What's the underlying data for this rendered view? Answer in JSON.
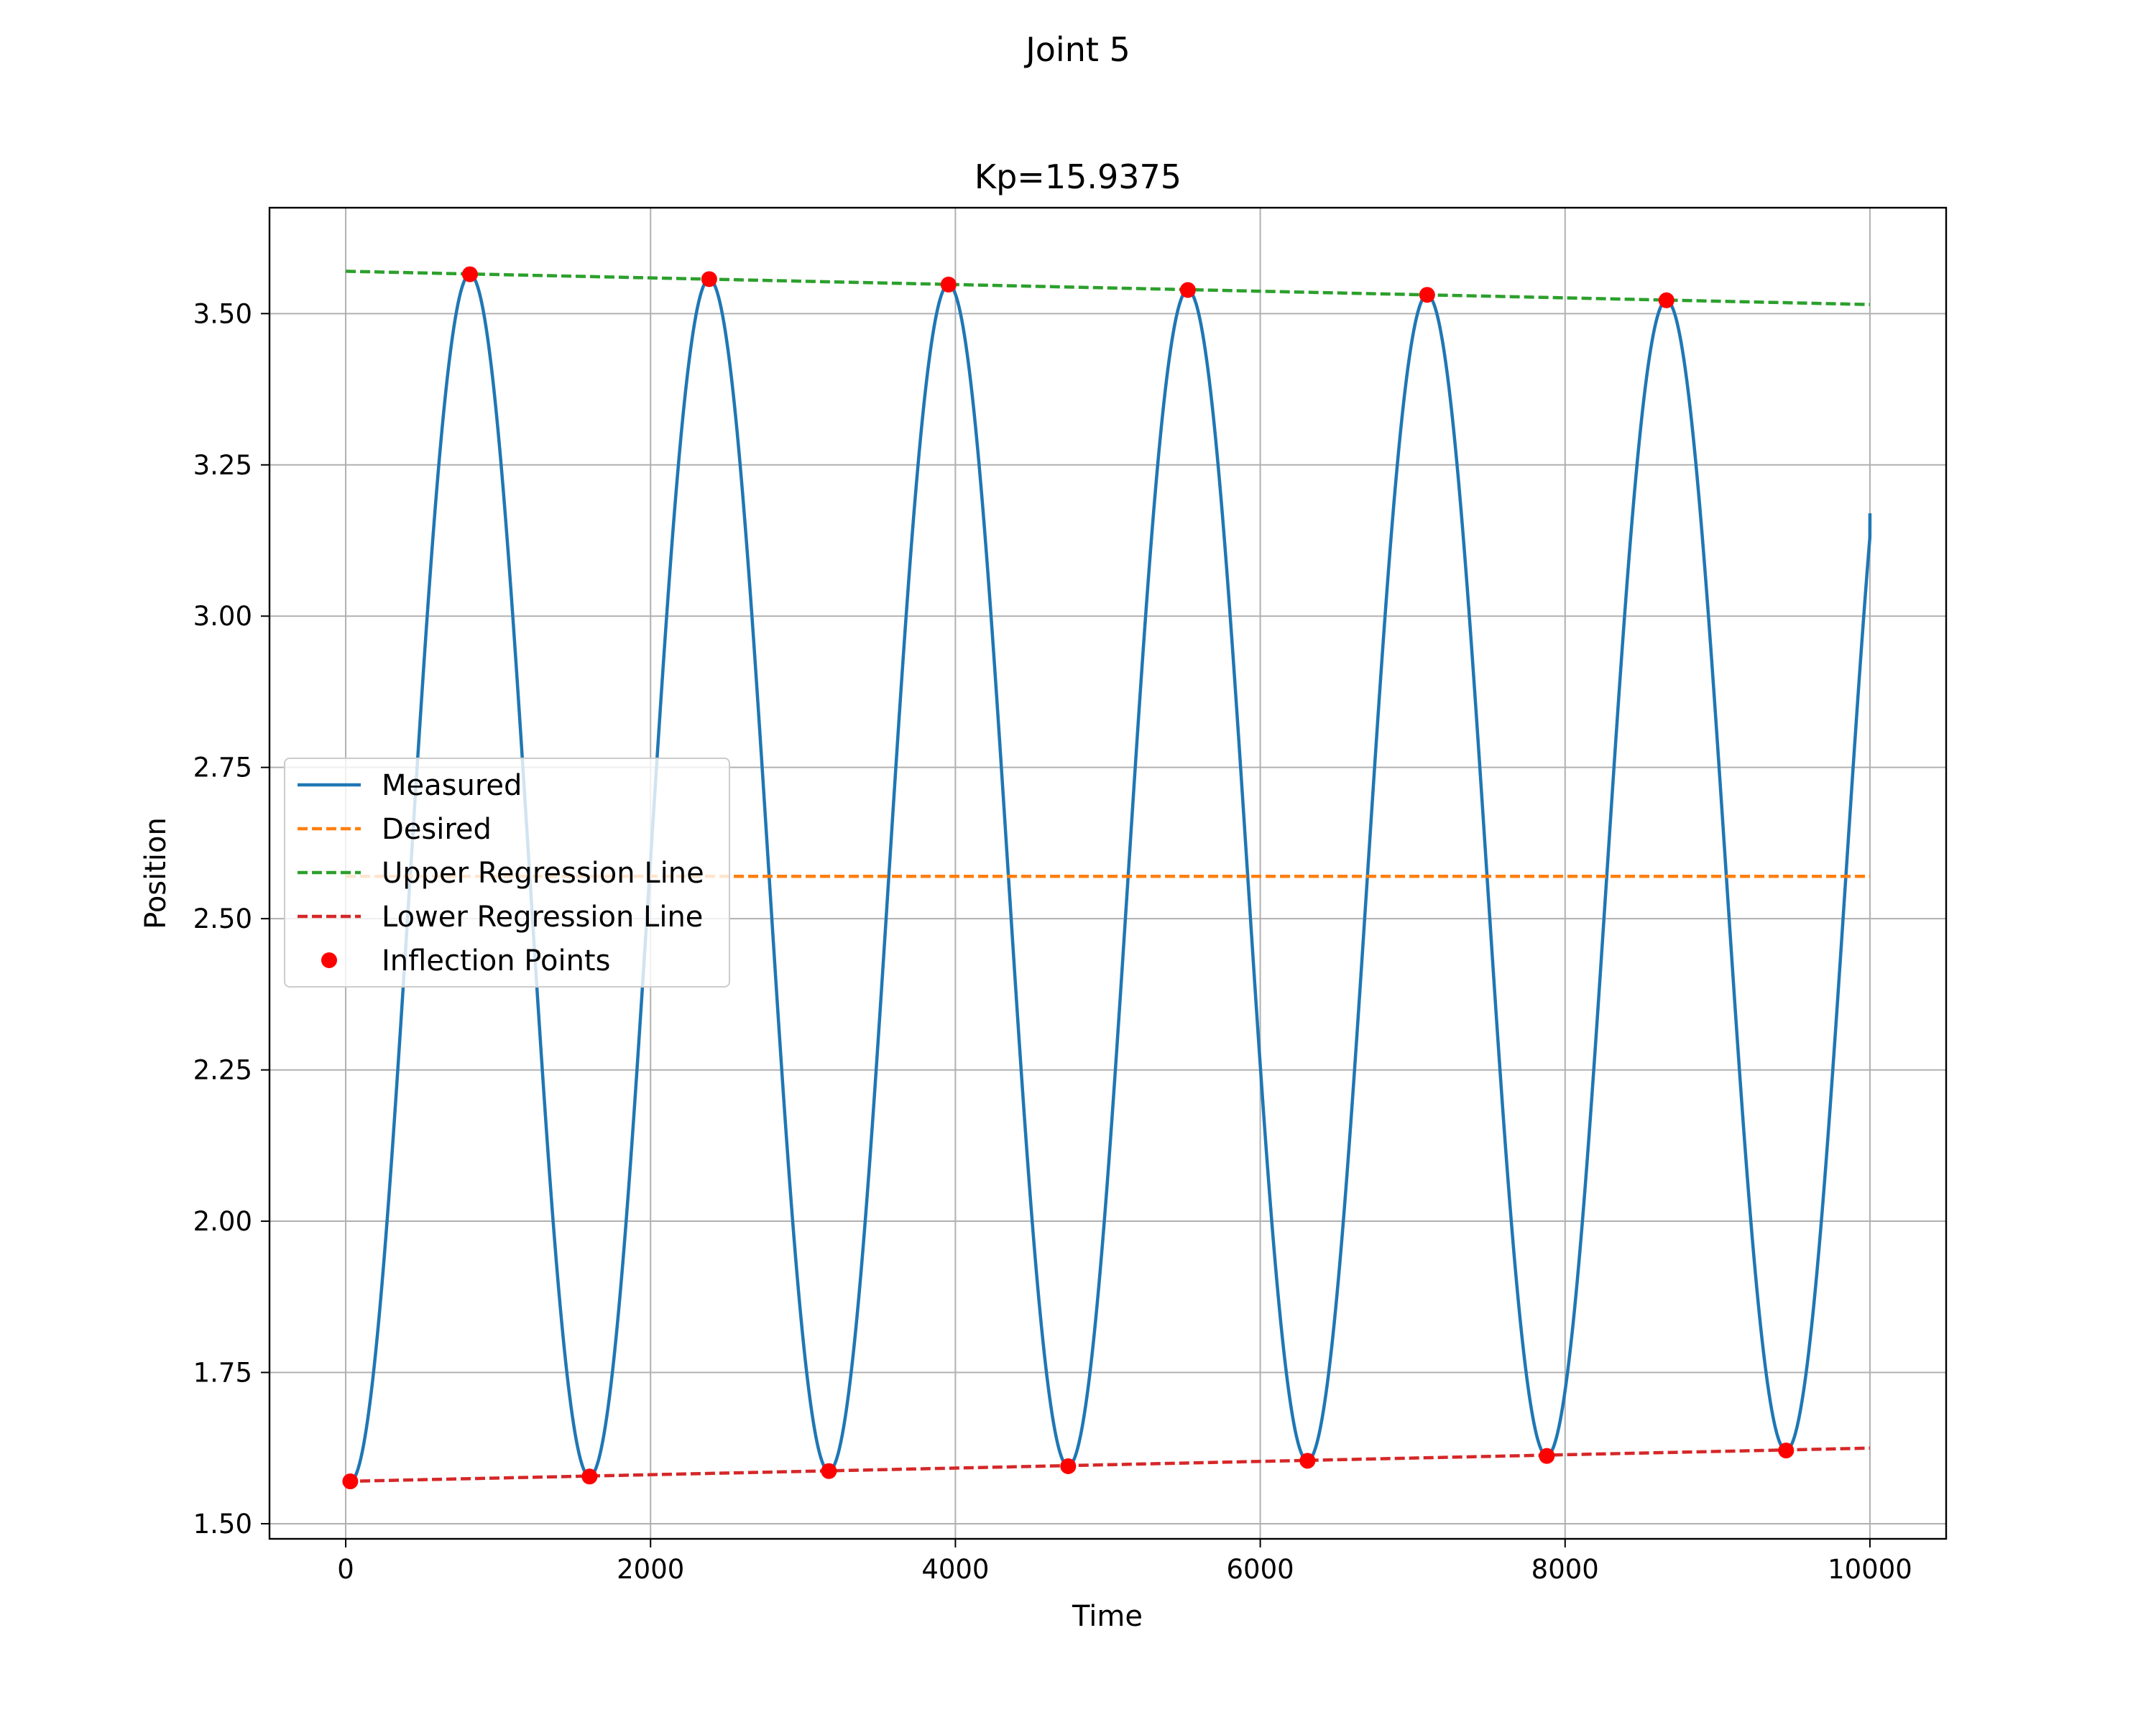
{
  "figure": {
    "suptitle": "Joint 5"
  },
  "chart_data": {
    "type": "line",
    "title": "Kp=15.9375",
    "xlabel": "Time",
    "ylabel": "Position",
    "xlim": [
      -500,
      10500
    ],
    "ylim": [
      1.475,
      3.675
    ],
    "xticks": [
      0,
      2000,
      4000,
      6000,
      8000,
      10000
    ],
    "xtick_labels": [
      "0",
      "2000",
      "4000",
      "6000",
      "8000",
      "10000"
    ],
    "yticks": [
      1.5,
      1.75,
      2.0,
      2.25,
      2.5,
      2.75,
      3.0,
      3.25,
      3.5
    ],
    "ytick_labels": [
      "1.50",
      "1.75",
      "2.00",
      "2.25",
      "2.50",
      "2.75",
      "3.00",
      "3.25",
      "3.50"
    ],
    "grid": true,
    "legend_position": "center-left",
    "series": [
      {
        "name": "Measured",
        "kind": "line",
        "color": "#1f77b4",
        "x_range": [
          30,
          10000
        ],
        "x_extent": [
          30,
          10000
        ],
        "extrema": [
          {
            "x": 30,
            "y": 1.57
          },
          {
            "x": 815,
            "y": 3.565
          },
          {
            "x": 1600,
            "y": 1.578
          },
          {
            "x": 2385,
            "y": 3.557
          },
          {
            "x": 3170,
            "y": 1.587
          },
          {
            "x": 3955,
            "y": 3.548
          },
          {
            "x": 4740,
            "y": 1.595
          },
          {
            "x": 5525,
            "y": 3.539
          },
          {
            "x": 6310,
            "y": 1.604
          },
          {
            "x": 7095,
            "y": 3.531
          },
          {
            "x": 7880,
            "y": 1.612
          },
          {
            "x": 8665,
            "y": 3.522
          },
          {
            "x": 9450,
            "y": 1.621
          }
        ],
        "end_point": {
          "x": 10000,
          "y": 3.17
        }
      },
      {
        "name": "Desired",
        "kind": "dashed",
        "color": "#ff7f0e",
        "x": [
          0,
          10000
        ],
        "y": [
          2.57,
          2.57
        ]
      },
      {
        "name": "Upper Regression Line",
        "kind": "dashed",
        "color": "#2ca02c",
        "x": [
          0,
          10000
        ],
        "y": [
          3.57,
          3.515
        ]
      },
      {
        "name": "Lower Regression Line",
        "kind": "dashed",
        "color": "#d62728",
        "x": [
          0,
          10000
        ],
        "y": [
          1.57,
          1.625
        ]
      },
      {
        "name": "Inflection Points",
        "kind": "markers",
        "color": "#ff0000",
        "x": [
          30,
          815,
          1600,
          2385,
          3170,
          3955,
          4740,
          5525,
          6310,
          7095,
          7880,
          8665,
          9450
        ],
        "y": [
          1.57,
          3.565,
          1.578,
          3.557,
          1.587,
          3.548,
          1.595,
          3.539,
          1.604,
          3.531,
          1.612,
          3.522,
          1.621
        ]
      }
    ]
  }
}
